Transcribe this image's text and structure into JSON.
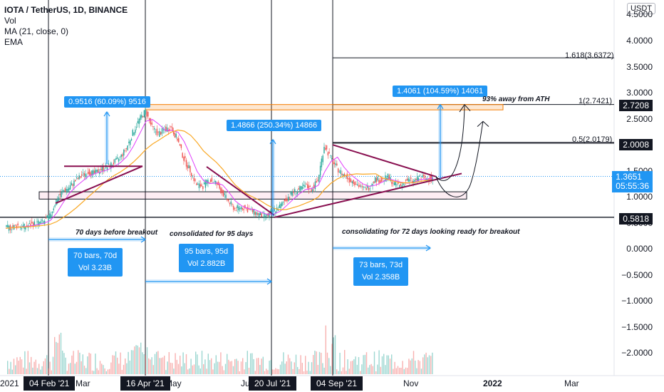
{
  "legend": {
    "title": "IOTA / TetherUS, 1D, BINANCE",
    "vol": "Vol",
    "ma": "MA (21, close, 0)",
    "ema": "EMA"
  },
  "currency_button": "USDT",
  "colors": {
    "accent": "#2196f3",
    "up": "#26a69a",
    "down": "#ef5350",
    "trend": "#880e4f",
    "ma": "#e040fb",
    "ema": "#f9a825",
    "fib_band": "#f57c00"
  },
  "chart_data": {
    "type": "line",
    "title": "IOTA / TetherUS, 1D, BINANCE",
    "ylim": [
      -2.3,
      5.0
    ],
    "y_ticks": [
      4.5,
      4.0,
      3.5,
      3.0,
      2.5,
      2.0,
      1.5,
      1.0,
      0.5,
      0.0,
      -0.5,
      -1.0,
      -1.5,
      -2.0
    ],
    "y_tick_labels": [
      "4.5000",
      "4.0000",
      "3.5000",
      "3.0000",
      "2.5000",
      "2.0000",
      "1.5000",
      "1.0000",
      "0.5000",
      "0.0000",
      "−0.5000",
      "−1.0000",
      "−1.5000",
      "−2.0000"
    ],
    "x_tick_labels": [
      "2021",
      "Mar",
      "May",
      "Ju",
      "Nov",
      "2022",
      "Mar"
    ],
    "x_date_tags": [
      "04 Feb '21",
      "16 Apr '21",
      "20 Jul '21",
      "04 Sep '21"
    ],
    "series": [
      {
        "values": [
          0.37,
          0.39,
          0.42,
          0.4,
          0.44,
          0.47,
          0.49,
          0.6,
          0.9,
          1.08,
          1.15,
          1.28,
          1.38,
          1.45,
          1.42,
          1.5,
          1.55,
          1.62,
          1.72,
          1.9,
          2.2,
          2.45,
          2.62,
          2.3,
          2.18,
          2.26,
          2.3,
          2.08,
          1.7,
          1.48,
          1.2,
          1.18,
          1.3,
          1.24,
          1.06,
          0.88,
          0.74,
          0.78,
          0.73,
          0.68,
          0.63,
          0.6,
          0.7,
          0.78,
          0.92,
          1.06,
          1.1,
          1.18,
          1.12,
          1.28,
          1.96,
          1.72,
          1.52,
          1.4,
          1.3,
          1.24,
          1.12,
          1.16,
          1.32,
          1.28,
          1.36,
          1.22,
          1.18,
          1.3,
          1.26,
          1.36,
          1.32,
          1.33
        ]
      }
    ],
    "price_tags": [
      {
        "value": 2.7208,
        "label": "2.7208"
      },
      {
        "value": 2.0008,
        "label": "2.0008"
      },
      {
        "value": 1.3651,
        "label": "1.3651",
        "sub": "05:55:36"
      },
      {
        "value": 0.5818,
        "label": "0.5818"
      }
    ],
    "fib_levels": [
      {
        "value": 3.6372,
        "label": "1.618(3.6372)"
      },
      {
        "value": 2.7421,
        "label": "1(2.7421)"
      },
      {
        "value": 2.0179,
        "label": "0.5(2.0179)"
      }
    ],
    "measurements": [
      {
        "label": "0.9516 (60.09%) 9516"
      },
      {
        "label": "1.4866 (250.34%) 14866"
      },
      {
        "label": "1.4061 (104.59%) 14061"
      }
    ],
    "range_boxes": [
      {
        "bars": "70 bars, 70d",
        "vol": "Vol 3.23B"
      },
      {
        "bars": "95 bars, 95d",
        "vol": "Vol 2.882B"
      },
      {
        "bars": "73 bars, 73d",
        "vol": "Vol 2.358B"
      }
    ],
    "annotations": [
      "93% away from ATH",
      "70 days before breakout",
      "consolidated for 95 days",
      "consolidating for 72 days looking ready for breakout"
    ]
  }
}
